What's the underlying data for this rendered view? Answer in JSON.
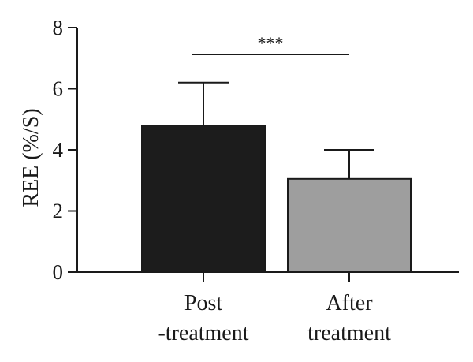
{
  "chart_data": {
    "type": "bar",
    "title": "",
    "xlabel": "",
    "ylabel": "REE (%/S)",
    "ylim": [
      0,
      8
    ],
    "yticks": [
      0,
      2,
      4,
      6,
      8
    ],
    "categories": [
      [
        "Post",
        "-treatment"
      ],
      [
        "After",
        "treatment"
      ]
    ],
    "values": [
      4.8,
      3.05
    ],
    "error_upper": [
      6.2,
      4.0
    ],
    "bar_colors": [
      "#1c1c1c",
      "#9e9e9e"
    ],
    "grid": false,
    "legend": "none",
    "significance": {
      "between": [
        0,
        1
      ],
      "label": "***"
    }
  }
}
